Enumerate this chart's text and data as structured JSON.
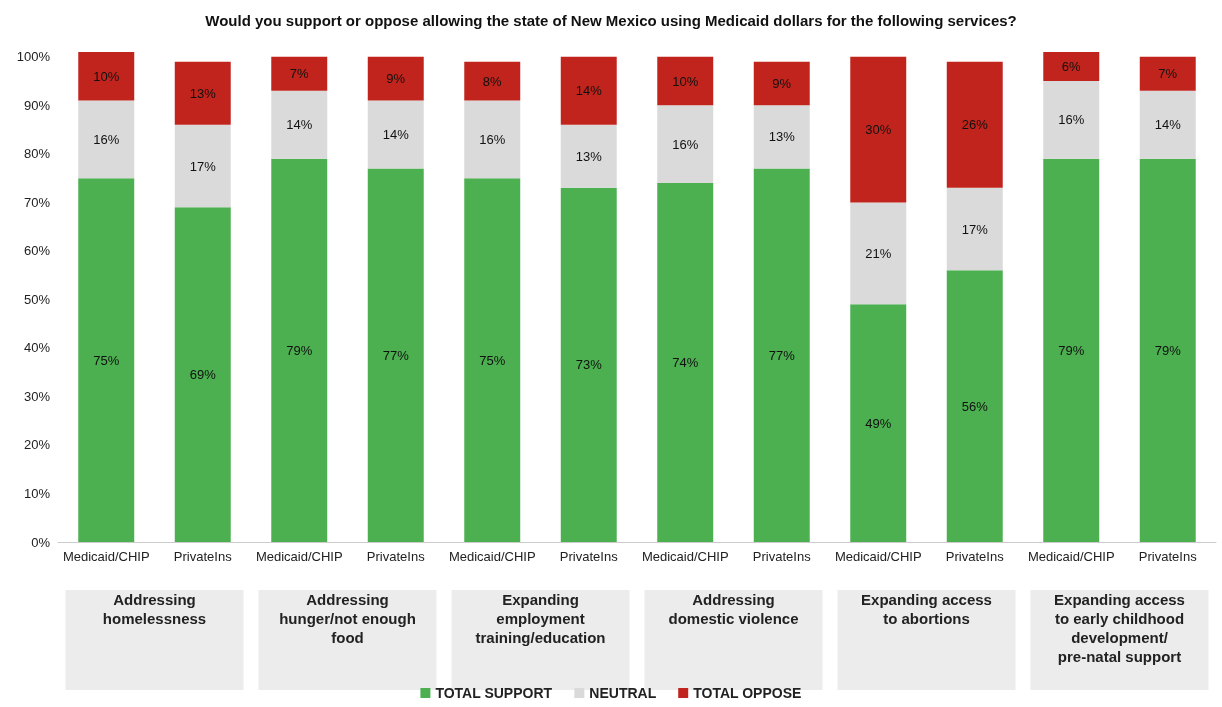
{
  "chart_data": {
    "type": "bar",
    "stacked": true,
    "title": "Would you support or oppose allowing the state of New Mexico using Medicaid dollars for the following services?",
    "categories": [
      "Medicaid/CHIP",
      "PrivateIns",
      "Medicaid/CHIP",
      "PrivateIns",
      "Medicaid/CHIP",
      "PrivateIns",
      "Medicaid/CHIP",
      "PrivateIns",
      "Medicaid/CHIP",
      "PrivateIns",
      "Medicaid/CHIP",
      "PrivateIns"
    ],
    "series": [
      {
        "name": "TOTAL SUPPORT",
        "color": "#4cb050",
        "values": [
          75,
          69,
          79,
          77,
          75,
          73,
          74,
          77,
          49,
          56,
          79,
          79
        ],
        "value_labels": [
          "75%",
          "69%",
          "79%",
          "77%",
          "75%",
          "73%",
          "74%",
          "77%",
          "49%",
          "56%",
          "79%",
          "79%"
        ]
      },
      {
        "name": "NEUTRAL",
        "color": "#dadada",
        "values": [
          16,
          17,
          14,
          14,
          16,
          13,
          16,
          13,
          21,
          17,
          16,
          14
        ],
        "value_labels": [
          "16%",
          "17%",
          "14%",
          "14%",
          "16%",
          "13%",
          "16%",
          "13%",
          "21%",
          "17%",
          "16%",
          "14%"
        ]
      },
      {
        "name": "TOTAL OPPOSE",
        "color": "#c0241c",
        "values": [
          10,
          13,
          7,
          9,
          8,
          14,
          10,
          9,
          30,
          26,
          6,
          7
        ],
        "value_labels": [
          "10%",
          "13%",
          "7%",
          "9%",
          "8%",
          "14%",
          "10%",
          "9%",
          "30%",
          "26%",
          "6%",
          "7%"
        ]
      }
    ],
    "ylim": [
      0,
      101
    ],
    "yticks": [
      {
        "value": 0,
        "label": "0%"
      },
      {
        "value": 10,
        "label": "10%"
      },
      {
        "value": 20,
        "label": "20%"
      },
      {
        "value": 30,
        "label": "30%"
      },
      {
        "value": 40,
        "label": "40%"
      },
      {
        "value": 50,
        "label": "50%"
      },
      {
        "value": 60,
        "label": "60%"
      },
      {
        "value": 70,
        "label": "70%"
      },
      {
        "value": 80,
        "label": "80%"
      },
      {
        "value": 90,
        "label": "90%"
      },
      {
        "value": 100,
        "label": "100%"
      }
    ],
    "annotations": [
      "Addressing\nhomelessness",
      "Addressing\nhunger/not enough\nfood",
      "Expanding\nemployment\ntraining/education",
      "Addressing\ndomestic violence",
      "Expanding access\nto abortions",
      "Expanding access\nto early childhood\ndevelopment/\npre-natal support"
    ],
    "grid": false,
    "legend": "bottom"
  }
}
